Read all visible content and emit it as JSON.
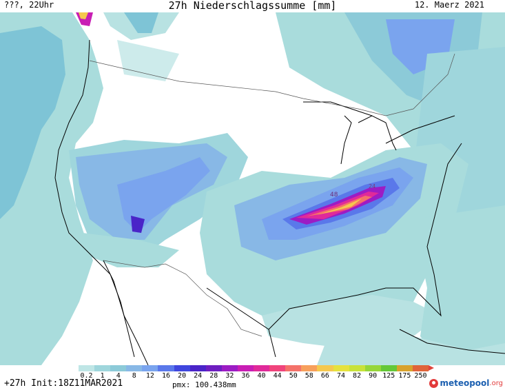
{
  "header": {
    "left": "???, 22Uhr",
    "title": "27h Niederschlagssumme [mm]",
    "right": "12. Maerz 2021"
  },
  "map": {
    "region": "USA",
    "background_color": "#ffffff",
    "coastline_color": "#000000",
    "border_color": "#555555",
    "max_labels": [
      "48",
      "24"
    ]
  },
  "legend": {
    "labels": [
      "0.2",
      "1",
      "4",
      "8",
      "12",
      "16",
      "20",
      "24",
      "28",
      "32",
      "36",
      "40",
      "44",
      "50",
      "58",
      "66",
      "74",
      "82",
      "90",
      "125",
      "175",
      "250"
    ],
    "colors": [
      "#bfe6e6",
      "#9fd6dc",
      "#8ccad8",
      "#88b8e6",
      "#7aa4ee",
      "#5a78ea",
      "#3f46de",
      "#4a24c8",
      "#6e1ec0",
      "#9c1cc4",
      "#c81eb4",
      "#e02a9a",
      "#f0447c",
      "#f4726a",
      "#f7a05c",
      "#f5c84e",
      "#e6e23e",
      "#c8e23a",
      "#96d63a",
      "#64c838",
      "#d8a22c",
      "#e0643a"
    ],
    "arrow_color": "#e0443a"
  },
  "footer": {
    "left": "+27h  Init:18Z11MAR2021",
    "mid": "pmx: 100.438mm",
    "brand_main": "meteopool",
    "brand_suffix": ".org",
    "brand_color": "#1b5fb0",
    "brand_accent": "#e23a3a"
  }
}
